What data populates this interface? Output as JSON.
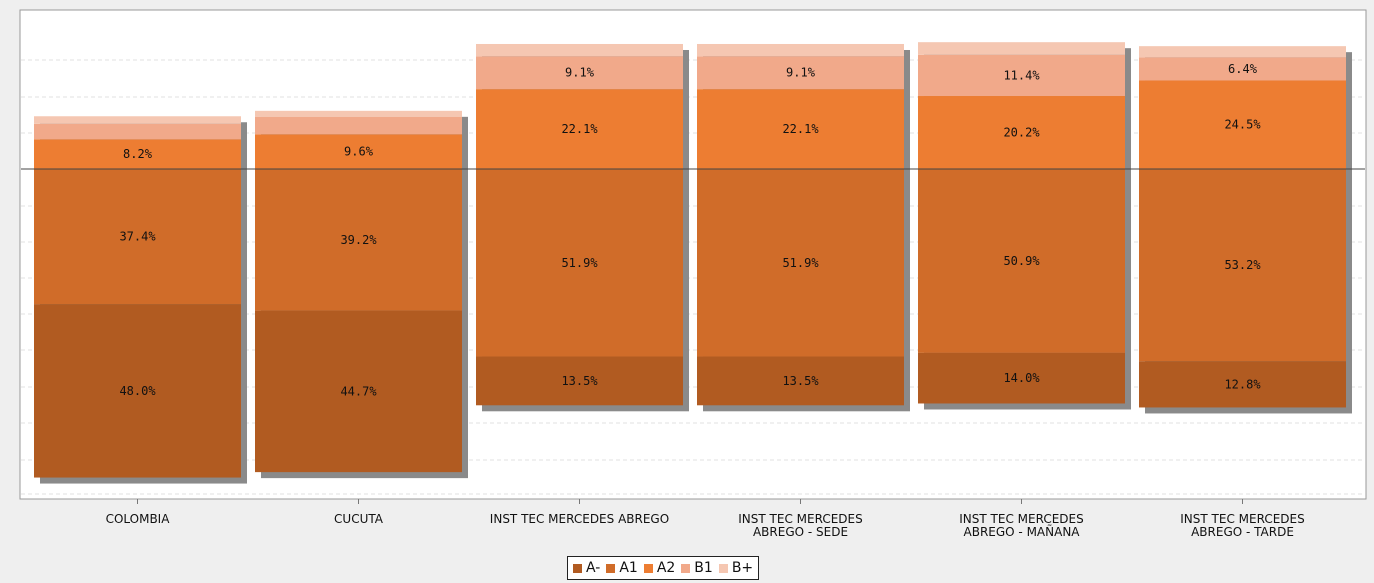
{
  "chart_data": {
    "type": "bar",
    "stacked": true,
    "orientation": "vertical",
    "categories": [
      [
        "COLOMBIA"
      ],
      [
        "CUCUTA"
      ],
      [
        "INST TEC MERCEDES ABREGO"
      ],
      [
        "INST TEC MERCEDES",
        "ABREGO - SEDE"
      ],
      [
        "INST TEC MERCEDES",
        "ABREGO - MAÑANA"
      ],
      [
        "INST TEC MERCEDES",
        "ABREGO - TARDE"
      ]
    ],
    "series": [
      {
        "name": "A-",
        "color": "#b15b21",
        "values": [
          48.0,
          44.7,
          13.5,
          13.5,
          14.0,
          12.8
        ],
        "labels": [
          "48.0%",
          "44.7%",
          "13.5%",
          "13.5%",
          "14.0%",
          "12.8%"
        ]
      },
      {
        "name": "A1",
        "color": "#d06c29",
        "values": [
          37.4,
          39.2,
          51.9,
          51.9,
          50.9,
          53.2
        ],
        "labels": [
          "37.4%",
          "39.2%",
          "51.9%",
          "51.9%",
          "50.9%",
          "53.2%"
        ]
      },
      {
        "name": "A2",
        "color": "#ed7d32",
        "values": [
          8.2,
          9.6,
          22.1,
          22.1,
          20.2,
          24.5
        ],
        "labels": [
          "8.2%",
          "9.6%",
          "22.1%",
          "22.1%",
          "20.2%",
          "24.5%"
        ]
      },
      {
        "name": "B1",
        "color": "#f1a98a",
        "values": [
          4.3,
          4.8,
          9.1,
          9.1,
          11.4,
          6.4
        ],
        "labels": [
          "",
          "",
          "9.1%",
          "9.1%",
          "11.4%",
          "6.4%"
        ]
      },
      {
        "name": "B+",
        "color": "#f5c7b2",
        "values": [
          2.1,
          1.7,
          3.4,
          3.4,
          3.5,
          3.1
        ],
        "labels": [
          "",
          "",
          "",
          "",
          "",
          ""
        ]
      }
    ],
    "reference_line": "zero baseline between A1 and A2",
    "legend_position": "bottom-center",
    "grid": true,
    "title": "",
    "xlabel": "",
    "ylabel": ""
  }
}
